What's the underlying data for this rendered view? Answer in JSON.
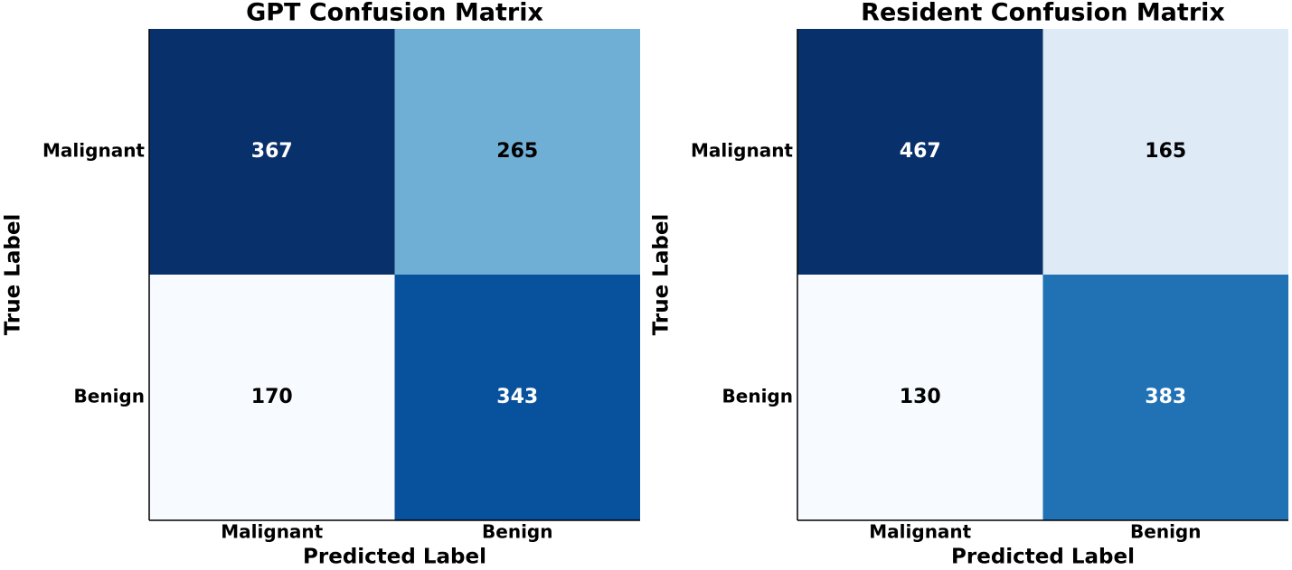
{
  "chart_data": [
    {
      "type": "heatmap",
      "title": "GPT Confusion Matrix",
      "xlabel": "Predicted Label",
      "ylabel": "True Label",
      "x_categories": [
        "Malignant",
        "Benign"
      ],
      "y_categories": [
        "Malignant",
        "Benign"
      ],
      "values": [
        [
          367,
          265
        ],
        [
          170,
          343
        ]
      ],
      "colors": [
        [
          "#08306b",
          "#6fafd6"
        ],
        [
          "#f7fbff",
          "#08519c"
        ]
      ]
    },
    {
      "type": "heatmap",
      "title": "Resident Confusion Matrix",
      "xlabel": "Predicted Label",
      "ylabel": "True Label",
      "x_categories": [
        "Malignant",
        "Benign"
      ],
      "y_categories": [
        "Malignant",
        "Benign"
      ],
      "values": [
        [
          467,
          165
        ],
        [
          130,
          383
        ]
      ],
      "colors": [
        [
          "#08306b",
          "#deebf7"
        ],
        [
          "#f7fbff",
          "#2171b5"
        ]
      ]
    }
  ]
}
